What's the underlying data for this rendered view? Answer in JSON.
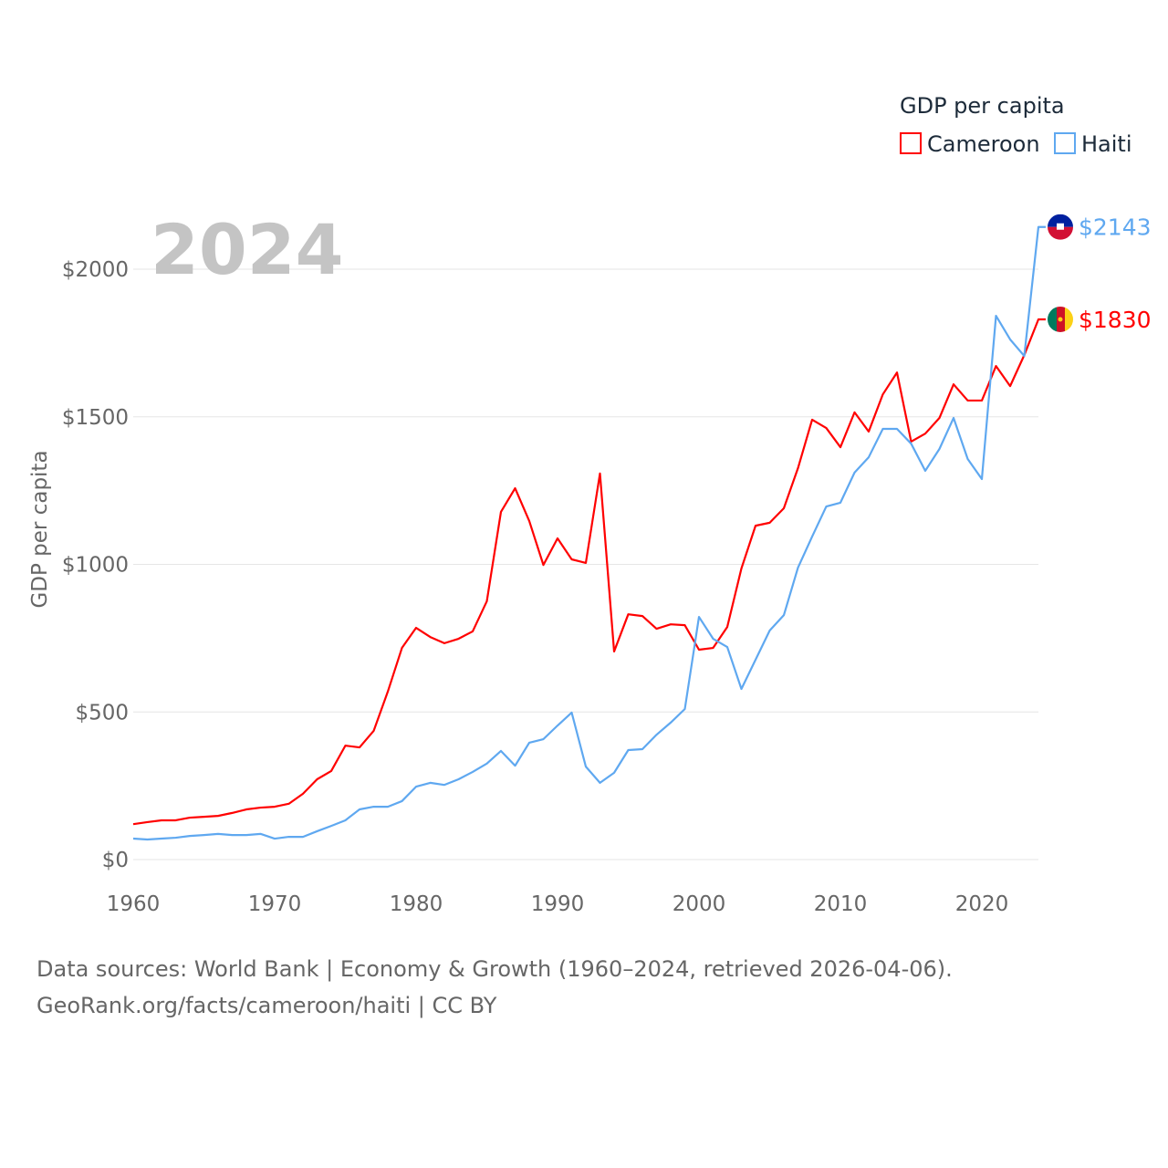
{
  "chart_data": {
    "type": "line",
    "title": "",
    "year_label": "2024",
    "ylabel": "GDP per capita",
    "xlabel": "",
    "xlim": [
      1960,
      2024
    ],
    "ylim": [
      0,
      2000
    ],
    "x_ticks": [
      "1960",
      "1970",
      "1980",
      "1990",
      "2000",
      "2010",
      "2020"
    ],
    "y_ticks": [
      "$0",
      "$500",
      "$1000",
      "$1500",
      "$2000"
    ],
    "grid": true,
    "legend": {
      "title": "GDP per capita",
      "placement": "top-right"
    },
    "x": [
      1960,
      1961,
      1962,
      1963,
      1964,
      1965,
      1966,
      1967,
      1968,
      1969,
      1970,
      1971,
      1972,
      1973,
      1974,
      1975,
      1976,
      1977,
      1978,
      1979,
      1980,
      1981,
      1982,
      1983,
      1984,
      1985,
      1986,
      1987,
      1988,
      1989,
      1990,
      1991,
      1992,
      1993,
      1994,
      1995,
      1996,
      1997,
      1998,
      1999,
      2000,
      2001,
      2002,
      2003,
      2004,
      2005,
      2006,
      2007,
      2008,
      2009,
      2010,
      2011,
      2012,
      2013,
      2014,
      2015,
      2016,
      2017,
      2018,
      2019,
      2020,
      2021,
      2022,
      2023,
      2024
    ],
    "series": [
      {
        "name": "Cameroon",
        "color": "#ff0000",
        "end_label": "$1830",
        "values": [
          120,
          127,
          133,
          133,
          142,
          145,
          148,
          158,
          170,
          176,
          179,
          189,
          223,
          272,
          300,
          386,
          380,
          436,
          569,
          717,
          785,
          754,
          733,
          748,
          773,
          875,
          1178,
          1258,
          1147,
          998,
          1088,
          1017,
          1005,
          1308,
          705,
          831,
          825,
          782,
          797,
          794,
          711,
          717,
          788,
          986,
          1131,
          1141,
          1190,
          1326,
          1490,
          1462,
          1397,
          1515,
          1450,
          1576,
          1650,
          1416,
          1443,
          1496,
          1610,
          1555,
          1555,
          1672,
          1604,
          1709,
          1830
        ]
      },
      {
        "name": "Haiti",
        "color": "#5fa8f0",
        "end_label": "$2143",
        "values": [
          71,
          68,
          71,
          74,
          80,
          83,
          87,
          83,
          83,
          87,
          71,
          77,
          77,
          96,
          114,
          133,
          170,
          179,
          179,
          198,
          247,
          260,
          253,
          272,
          297,
          325,
          368,
          318,
          396,
          408,
          454,
          498,
          315,
          260,
          294,
          371,
          374,
          423,
          464,
          510,
          822,
          748,
          720,
          578,
          677,
          776,
          828,
          989,
          1094,
          1196,
          1209,
          1311,
          1363,
          1459,
          1459,
          1409,
          1317,
          1391,
          1496,
          1357,
          1289,
          1842,
          1762,
          1706,
          2143
        ]
      }
    ]
  },
  "footer": {
    "line1": "Data sources: World Bank | Economy & Growth (1960–2024, retrieved 2026-04-06).",
    "line2": "GeoRank.org/facts/cameroon/haiti | CC BY"
  }
}
